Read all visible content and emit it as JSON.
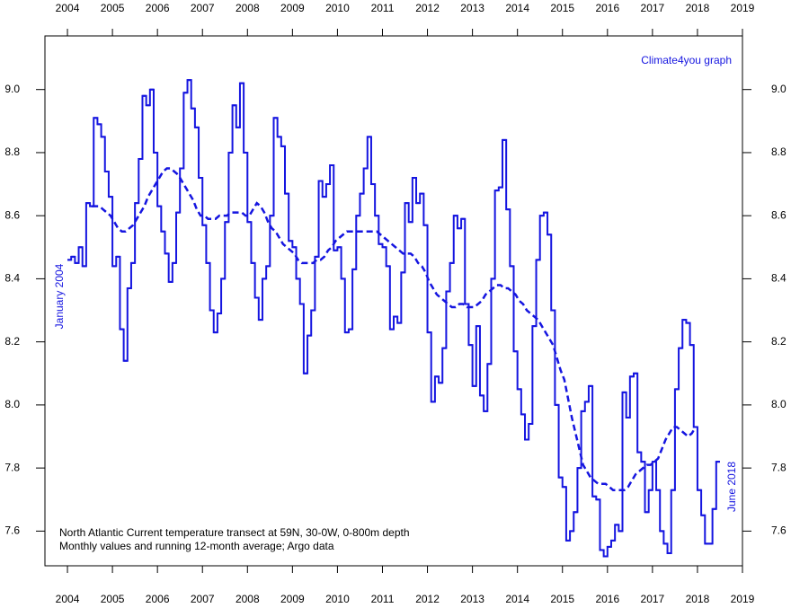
{
  "chart_data": {
    "type": "line",
    "credit": "Climate4you graph",
    "start_label": "January 2004",
    "end_label": "June 2018",
    "notes": [
      "North Atlantic Current temperature transect at 59N, 30-0W, 0-800m depth",
      "Monthly values and running 12-month average; Argo data"
    ],
    "xlim": [
      2003.5,
      2019
    ],
    "xticks": [
      2004,
      2005,
      2006,
      2007,
      2008,
      2009,
      2010,
      2011,
      2012,
      2013,
      2014,
      2015,
      2016,
      2017,
      2018,
      2019
    ],
    "ylim": [
      7.49,
      9.17
    ],
    "yticks": [
      7.6,
      7.8,
      {
        "value": 8,
        "label": "8.0"
      },
      8.2,
      8.4,
      8.6,
      8.8,
      {
        "value": 9,
        "label": "9.0"
      }
    ],
    "series": [
      {
        "color": "#1515e0",
        "style": "step",
        "values": [
          8.46,
          8.47,
          8.45,
          8.5,
          8.44,
          8.64,
          8.63,
          8.91,
          8.89,
          8.85,
          8.74,
          8.66,
          8.44,
          8.47,
          8.24,
          8.14,
          8.37,
          8.45,
          8.64,
          8.78,
          8.98,
          8.95,
          9.0,
          8.8,
          8.63,
          8.55,
          8.48,
          8.39,
          8.45,
          8.61,
          8.75,
          8.99,
          9.03,
          8.94,
          8.88,
          8.72,
          8.57,
          8.45,
          8.3,
          8.23,
          8.29,
          8.4,
          8.58,
          8.8,
          8.95,
          8.88,
          9.02,
          8.8,
          8.58,
          8.45,
          8.34,
          8.27,
          8.4,
          8.44,
          8.6,
          8.91,
          8.85,
          8.82,
          8.67,
          8.52,
          8.5,
          8.4,
          8.32,
          8.1,
          8.22,
          8.3,
          8.47,
          8.71,
          8.66,
          8.7,
          8.76,
          8.49,
          8.5,
          8.4,
          8.23,
          8.24,
          8.43,
          8.6,
          8.67,
          8.75,
          8.85,
          8.7,
          8.6,
          8.51,
          8.5,
          8.44,
          8.24,
          8.28,
          8.26,
          8.42,
          8.64,
          8.58,
          8.72,
          8.64,
          8.67,
          8.57,
          8.23,
          8.01,
          8.09,
          8.07,
          8.18,
          8.36,
          8.45,
          8.6,
          8.56,
          8.59,
          8.32,
          8.19,
          8.06,
          8.25,
          8.03,
          7.98,
          8.13,
          8.4,
          8.68,
          8.69,
          8.84,
          8.62,
          8.44,
          8.17,
          8.05,
          7.97,
          7.89,
          7.94,
          8.25,
          8.46,
          8.6,
          8.61,
          8.54,
          8.3,
          8.0,
          7.77,
          7.74,
          7.57,
          7.6,
          7.66,
          7.8,
          7.98,
          8.01,
          8.06,
          7.71,
          7.7,
          7.54,
          7.52,
          7.55,
          7.57,
          7.62,
          7.6,
          8.04,
          7.96,
          8.09,
          8.1,
          7.85,
          7.82,
          7.66,
          7.73,
          7.82,
          7.73,
          7.6,
          7.56,
          7.53,
          7.73,
          8.05,
          8.18,
          8.27,
          8.26,
          8.19,
          7.93,
          7.73,
          7.65,
          7.56,
          7.56,
          7.67,
          7.82
        ]
      },
      {
        "color": "#1515e0",
        "style": "dashed",
        "values": [
          null,
          null,
          null,
          null,
          null,
          null,
          8.63,
          8.63,
          8.63,
          8.62,
          8.61,
          8.6,
          8.58,
          8.56,
          8.55,
          8.55,
          8.56,
          8.57,
          8.59,
          8.61,
          8.63,
          8.66,
          8.68,
          8.7,
          8.72,
          8.74,
          8.75,
          8.75,
          8.74,
          8.73,
          8.71,
          8.69,
          8.67,
          8.65,
          8.62,
          8.6,
          8.6,
          8.59,
          8.59,
          8.59,
          8.6,
          8.6,
          8.6,
          8.61,
          8.61,
          8.61,
          8.61,
          8.6,
          8.6,
          8.62,
          8.64,
          8.63,
          8.61,
          8.58,
          8.56,
          8.55,
          8.53,
          8.51,
          8.5,
          8.49,
          8.48,
          8.46,
          8.45,
          8.45,
          8.45,
          8.45,
          8.46,
          8.46,
          8.47,
          8.49,
          8.5,
          8.52,
          8.53,
          8.54,
          8.55,
          8.55,
          8.55,
          8.55,
          8.55,
          8.55,
          8.55,
          8.55,
          8.55,
          8.54,
          8.53,
          8.52,
          8.51,
          8.5,
          8.49,
          8.48,
          8.48,
          8.48,
          8.47,
          8.45,
          8.44,
          8.42,
          8.39,
          8.37,
          8.35,
          8.34,
          8.33,
          8.32,
          8.31,
          8.31,
          8.32,
          8.32,
          8.31,
          8.31,
          8.31,
          8.32,
          8.33,
          8.35,
          8.36,
          8.37,
          8.38,
          8.38,
          8.37,
          8.37,
          8.36,
          8.35,
          8.33,
          8.32,
          8.3,
          8.29,
          8.28,
          8.27,
          8.25,
          8.23,
          8.21,
          8.19,
          8.15,
          8.11,
          8.08,
          8.02,
          7.96,
          7.91,
          7.86,
          7.81,
          7.79,
          7.77,
          7.76,
          7.75,
          7.75,
          7.75,
          7.74,
          7.73,
          7.73,
          7.73,
          7.73,
          7.74,
          7.76,
          7.78,
          7.79,
          7.8,
          7.81,
          7.81,
          7.82,
          7.83,
          7.86,
          7.89,
          7.91,
          7.93,
          7.93,
          7.92,
          7.91,
          7.9,
          7.91,
          7.93,
          null,
          null,
          null,
          null,
          null,
          null
        ]
      }
    ]
  }
}
